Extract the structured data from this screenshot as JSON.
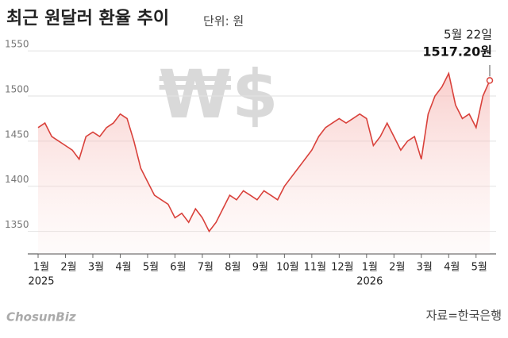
{
  "chart_data": {
    "type": "line",
    "title": "최근 원달러 환율 추이",
    "subtitle": "단위: 원",
    "watermark": "₩$",
    "source": "자료=한국은행",
    "logo": "ChosunBiz",
    "annotation": "5월 22일",
    "categories": [
      "1월",
      null,
      null,
      null,
      "2월",
      null,
      null,
      null,
      "3월",
      null,
      null,
      null,
      "4월",
      null,
      null,
      null,
      "5월",
      null,
      null,
      null,
      "6월",
      null,
      null,
      null,
      "7월",
      null,
      null,
      null,
      "8월",
      null,
      null,
      null,
      "9월",
      null,
      null,
      null,
      "10월",
      null,
      null,
      null,
      "11월",
      null,
      null,
      null,
      "12월",
      null,
      null,
      null,
      "1월",
      null,
      null,
      null,
      "2월",
      null,
      null,
      null,
      "3월",
      null,
      null,
      null,
      "4월",
      null,
      null,
      null,
      "5월",
      null,
      null
    ],
    "years": [
      "2025",
      null,
      null,
      null,
      null,
      null,
      null,
      null,
      null,
      null,
      null,
      null,
      null,
      null,
      null,
      null,
      null,
      null,
      null,
      null,
      null,
      null,
      null,
      null,
      null,
      null,
      null,
      null,
      null,
      null,
      null,
      null,
      null,
      null,
      null,
      null,
      null,
      null,
      null,
      null,
      null,
      null,
      null,
      null,
      null,
      null,
      null,
      null,
      "2026",
      null,
      null,
      null,
      null,
      null,
      null,
      null,
      null,
      null,
      null,
      null,
      null,
      null,
      null,
      null,
      null,
      null,
      null
    ],
    "series": [
      {
        "name": "원달러 환율",
        "color": "#d9413b",
        "values": [
          1465,
          1470,
          1455,
          1450,
          1445,
          1440,
          1430,
          1455,
          1460,
          1455,
          1465,
          1470,
          1480,
          1475,
          1450,
          1420,
          1405,
          1390,
          1385,
          1380,
          1365,
          1370,
          1360,
          1375,
          1365,
          1350,
          1360,
          1375,
          1390,
          1385,
          1395,
          1390,
          1385,
          1395,
          1390,
          1385,
          1400,
          1410,
          1420,
          1430,
          1440,
          1455,
          1465,
          1470,
          1475,
          1470,
          1475,
          1480,
          1475,
          1445,
          1455,
          1470,
          1455,
          1440,
          1450,
          1455,
          1430,
          1480,
          1500,
          1510,
          1525,
          1490,
          1475,
          1480,
          1465,
          1500,
          1517.2
        ],
        "value_labels": [
          null,
          null,
          null,
          null,
          null,
          null,
          null,
          null,
          null,
          null,
          null,
          null,
          null,
          null,
          null,
          null,
          null,
          null,
          null,
          null,
          null,
          null,
          null,
          null,
          null,
          null,
          null,
          null,
          null,
          null,
          null,
          null,
          null,
          null,
          null,
          null,
          null,
          null,
          null,
          null,
          null,
          null,
          null,
          null,
          null,
          null,
          null,
          null,
          null,
          null,
          null,
          null,
          null,
          null,
          null,
          null,
          null,
          null,
          null,
          null,
          null,
          null,
          null,
          null,
          null,
          null,
          "1517.20원"
        ]
      }
    ],
    "ylim": [
      1325,
      1558
    ],
    "yticks": [
      1350,
      1400,
      1450,
      1500,
      1550
    ],
    "grid": true
  }
}
